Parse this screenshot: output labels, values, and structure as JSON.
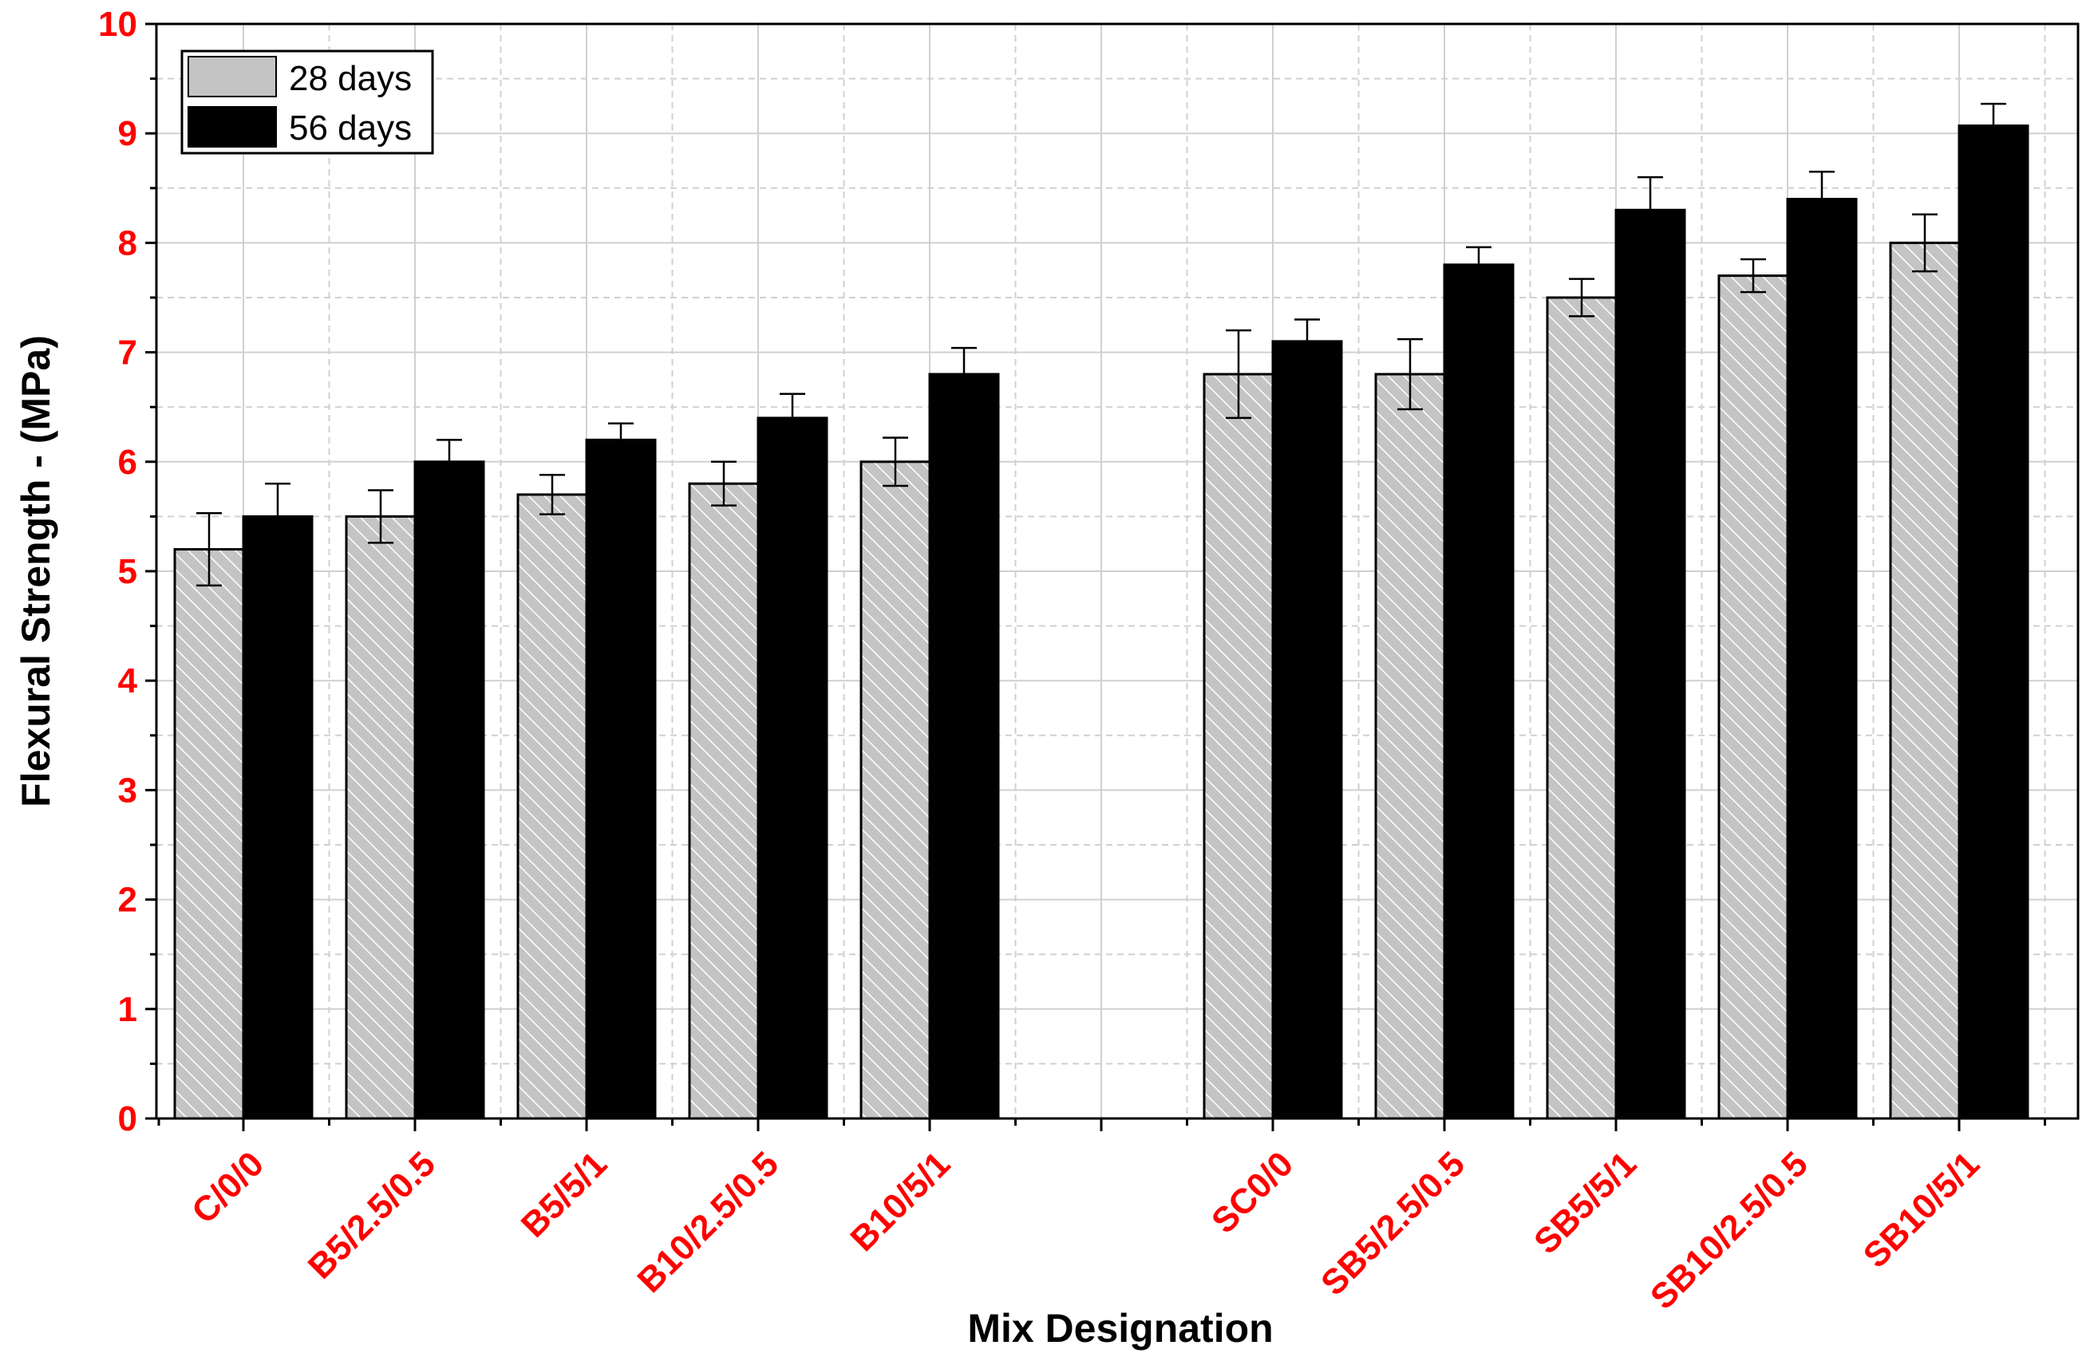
{
  "chart_data": {
    "type": "bar",
    "title": "",
    "xlabel": "Mix Designation",
    "ylabel": "Flexural Strength - (MPa)",
    "ylim": [
      0,
      10
    ],
    "yticks": [
      "0",
      "1",
      "2",
      "3",
      "4",
      "5",
      "6",
      "7",
      "8",
      "9",
      "10"
    ],
    "grid": true,
    "legend_position": "top-left",
    "groups": [
      {
        "categories": [
          "C/0/0",
          "B5/2.5/0.5",
          "B5/5/1",
          "B10/2.5/0.5",
          "B10/5/1"
        ],
        "start_slot": 0
      },
      {
        "categories": [
          "SC0/0",
          "SB5/2.5/0.5",
          "SB5/5/1",
          "SB10/2.5/0.5",
          "SB10/5/1"
        ],
        "start_slot": 6
      }
    ],
    "categories": [
      "C/0/0",
      "B5/2.5/0.5",
      "B5/5/1",
      "B10/2.5/0.5",
      "B10/5/1",
      "SC0/0",
      "SB5/2.5/0.5",
      "SB5/5/1",
      "SB10/2.5/0.5",
      "SB10/5/1"
    ],
    "series": [
      {
        "name": "28 days",
        "fill": "hatched-gray",
        "values": [
          5.2,
          5.5,
          5.7,
          5.8,
          6.0,
          6.8,
          6.8,
          7.5,
          7.7,
          8.0
        ],
        "errors": [
          0.33,
          0.24,
          0.18,
          0.2,
          0.22,
          0.4,
          0.32,
          0.17,
          0.15,
          0.26
        ]
      },
      {
        "name": "56 days",
        "fill": "black",
        "values": [
          5.5,
          6.0,
          6.2,
          6.4,
          6.8,
          7.1,
          7.8,
          8.3,
          8.4,
          9.07
        ],
        "errors": [
          0.3,
          0.2,
          0.15,
          0.22,
          0.24,
          0.2,
          0.16,
          0.3,
          0.25,
          0.2
        ]
      }
    ],
    "colors": {
      "tick_labels": "#ff0000",
      "bar_28": "#c8c8c8",
      "bar_56": "#000000",
      "grid": "#d0d0d0"
    }
  }
}
